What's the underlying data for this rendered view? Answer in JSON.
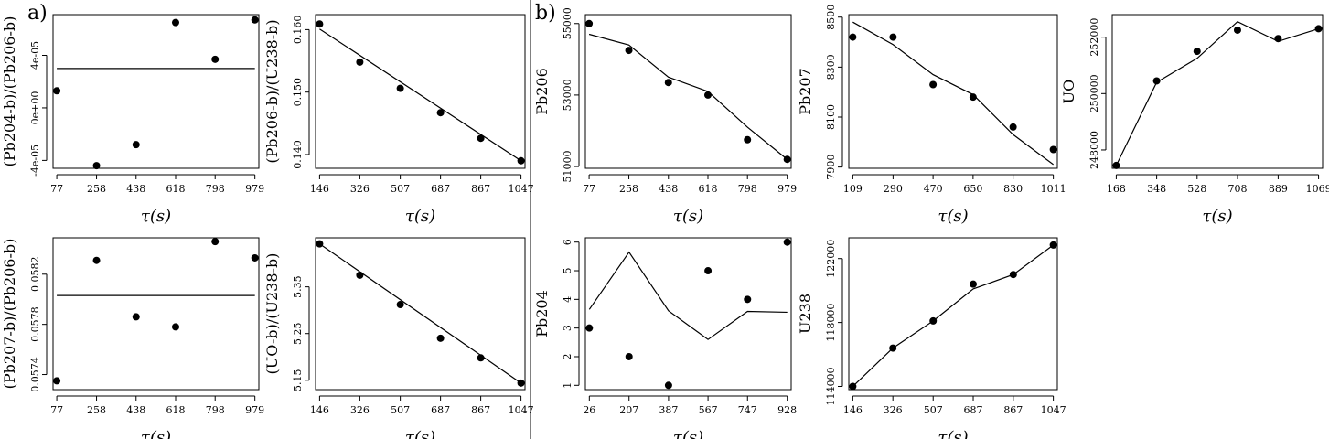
{
  "labels": {
    "a": "a)",
    "b": "b)"
  },
  "chart_data": [
    {
      "id": "pb204b_pb206b",
      "type": "scatter",
      "group": "a",
      "ylabel": "(Pb204-b)/(Pb206-b)",
      "xlabel": "τ(s)",
      "x": [
        77,
        258,
        438,
        618,
        798,
        979
      ],
      "y": [
        1.3e-05,
        -4.4e-05,
        -2.8e-05,
        6.5e-05,
        3.7e-05,
        6.7e-05
      ],
      "xticks": [
        77,
        258,
        438,
        618,
        798,
        979
      ],
      "yticks": [
        -4e-05,
        0,
        4e-05
      ],
      "ytick_labels": [
        "-4e-05",
        "0e+00",
        "4e-05"
      ],
      "xlim": [
        60,
        997
      ],
      "ylim": [
        -4.6e-05,
        7.1e-05
      ],
      "fit": {
        "type": "hline",
        "y": 3e-05
      }
    },
    {
      "id": "pb206b_u238b",
      "type": "scatter",
      "group": "a",
      "ylabel": "(Pb206-b)/(U238-b)",
      "xlabel": "τ(s)",
      "x": [
        146,
        326,
        507,
        687,
        867,
        1047
      ],
      "y": [
        0.1609,
        0.1548,
        0.1506,
        0.1467,
        0.1426,
        0.139
      ],
      "xticks": [
        146,
        326,
        507,
        687,
        867,
        1047
      ],
      "yticks": [
        0.14,
        0.15,
        0.16
      ],
      "ytick_labels": [
        "0.140",
        "0.150",
        "0.160"
      ],
      "xlim": [
        128,
        1065
      ],
      "ylim": [
        0.1378,
        0.1624
      ],
      "fit": {
        "type": "line",
        "x": [
          146,
          1047
        ],
        "y": [
          0.1601,
          0.139
        ]
      }
    },
    {
      "id": "pb206",
      "type": "line",
      "group": "b",
      "ylabel": "Pb206",
      "xlabel": "τ(s)",
      "x": [
        77,
        258,
        438,
        618,
        798,
        979
      ],
      "y": [
        55000,
        54250,
        53350,
        53000,
        51750,
        51200
      ],
      "xticks": [
        77,
        258,
        438,
        618,
        798,
        979
      ],
      "yticks": [
        51000,
        53000,
        55000
      ],
      "ytick_labels": [
        "51000",
        "53000",
        "55000"
      ],
      "xlim": [
        60,
        997
      ],
      "ylim": [
        50950,
        55250
      ],
      "fit": {
        "type": "line",
        "x": [
          77,
          258,
          438,
          618,
          798,
          979
        ],
        "y": [
          54700,
          54400,
          53500,
          53100,
          52100,
          51200
        ]
      }
    },
    {
      "id": "pb207",
      "type": "line",
      "group": "b",
      "ylabel": "Pb207",
      "xlabel": "τ(s)",
      "x": [
        109,
        290,
        470,
        650,
        830,
        1011
      ],
      "y": [
        8420,
        8420,
        8230,
        8180,
        8060,
        7970
      ],
      "xticks": [
        109,
        290,
        470,
        650,
        830,
        1011
      ],
      "yticks": [
        7900,
        8100,
        8300,
        8500
      ],
      "ytick_labels": [
        "7900",
        "8100",
        "8300",
        "8500"
      ],
      "xlim": [
        91,
        1029
      ],
      "ylim": [
        7895,
        8510
      ],
      "fit": {
        "type": "line",
        "x": [
          109,
          290,
          470,
          650,
          830,
          1011
        ],
        "y": [
          8480,
          8390,
          8270,
          8190,
          8030,
          7910
        ]
      }
    },
    {
      "id": "uo",
      "type": "line",
      "group": "b",
      "ylabel": "UO",
      "xlabel": "τ(s)",
      "x": [
        168,
        348,
        528,
        708,
        889,
        1069
      ],
      "y": [
        247450,
        250450,
        251500,
        252250,
        251950,
        252300
      ],
      "xticks": [
        168,
        348,
        528,
        708,
        889,
        1069
      ],
      "yticks": [
        248000,
        250000,
        252000
      ],
      "ytick_labels": [
        "248000",
        "250000",
        "252000"
      ],
      "xlim": [
        150,
        1087
      ],
      "ylim": [
        247350,
        252800
      ],
      "fit": {
        "type": "line",
        "x": [
          168,
          348,
          528,
          708,
          889,
          1069
        ],
        "y": [
          247450,
          250400,
          251250,
          252550,
          251850,
          252300
        ]
      }
    },
    {
      "id": "pb207b_pb206b",
      "type": "scatter",
      "group": "a",
      "ylabel": "(Pb207-b)/(Pb206-b)",
      "xlabel": "τ(s)",
      "x": [
        77,
        258,
        438,
        618,
        798,
        979
      ],
      "y": [
        0.05735,
        0.05831,
        0.05786,
        0.05778,
        0.05846,
        0.05833
      ],
      "xticks": [
        77,
        258,
        438,
        618,
        798,
        979
      ],
      "yticks": [
        0.0574,
        0.0578,
        0.0582
      ],
      "ytick_labels": [
        "0.0574",
        "0.0578",
        "0.0582"
      ],
      "xlim": [
        60,
        997
      ],
      "ylim": [
        0.05728,
        0.05849
      ],
      "fit": {
        "type": "hline",
        "y": 0.05803
      }
    },
    {
      "id": "uob_u238b",
      "type": "scatter",
      "group": "a",
      "ylabel": "(UO-b)/(U238-b)",
      "xlabel": "τ(s)",
      "x": [
        146,
        326,
        507,
        687,
        867,
        1047
      ],
      "y": [
        5.442,
        5.375,
        5.312,
        5.24,
        5.198,
        5.144
      ],
      "xticks": [
        146,
        326,
        507,
        687,
        867,
        1047
      ],
      "yticks": [
        5.15,
        5.25,
        5.35
      ],
      "ytick_labels": [
        "5.15",
        "5.25",
        "5.35"
      ],
      "xlim": [
        128,
        1065
      ],
      "ylim": [
        5.13,
        5.455
      ],
      "fit": {
        "type": "line",
        "x": [
          146,
          1047
        ],
        "y": [
          5.442,
          5.144
        ]
      }
    },
    {
      "id": "pb204",
      "type": "line",
      "group": "b",
      "ylabel": "Pb204",
      "xlabel": "τ(s)",
      "x": [
        26,
        207,
        387,
        567,
        747,
        928
      ],
      "y": [
        3,
        2,
        1,
        5,
        4,
        6
      ],
      "xticks": [
        26,
        207,
        387,
        567,
        747,
        928
      ],
      "yticks": [
        1,
        2,
        3,
        4,
        5,
        6
      ],
      "ytick_labels": [
        "1",
        "2",
        "3",
        "4",
        "5",
        "6"
      ],
      "xlim": [
        8,
        946
      ],
      "ylim": [
        0.85,
        6.15
      ],
      "fit": {
        "type": "line",
        "x": [
          26,
          207,
          387,
          567,
          747,
          928
        ],
        "y": [
          3.65,
          5.65,
          3.6,
          2.6,
          3.58,
          3.55
        ]
      }
    },
    {
      "id": "u238",
      "type": "line",
      "group": "b",
      "ylabel": "U238",
      "xlabel": "τ(s)",
      "x": [
        146,
        326,
        507,
        687,
        867,
        1047
      ],
      "y": [
        114000,
        116400,
        118100,
        120400,
        121000,
        122850
      ],
      "xticks": [
        146,
        326,
        507,
        687,
        867,
        1047
      ],
      "yticks": [
        114000,
        118000,
        122000
      ],
      "ytick_labels": [
        "114000",
        "118000",
        "122000"
      ],
      "xlim": [
        128,
        1065
      ],
      "ylim": [
        113800,
        123300
      ],
      "fit": {
        "type": "line",
        "x": [
          146,
          326,
          507,
          687,
          867,
          1047
        ],
        "y": [
          114000,
          116400,
          118100,
          120100,
          121000,
          122850
        ]
      }
    }
  ]
}
